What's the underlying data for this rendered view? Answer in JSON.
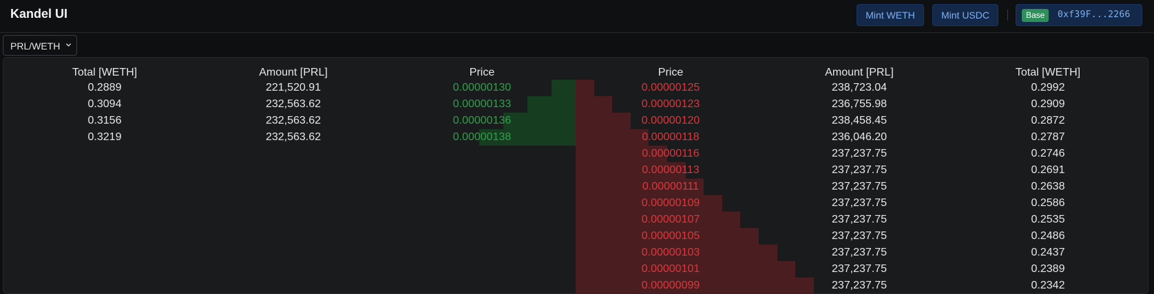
{
  "header": {
    "title": "Kandel UI",
    "mint_weth_label": "Mint WETH",
    "mint_usdc_label": "Mint USDC",
    "chain_badge": "Base",
    "wallet_address": "0xf39F...2266"
  },
  "market_select": {
    "value": "PRL/WETH"
  },
  "orderbook": {
    "bids": {
      "headers": [
        "Total [WETH]",
        "Amount [PRL]",
        "Price"
      ],
      "rows": [
        {
          "total": "0.2889",
          "amount": "221,520.91",
          "price": "0.00000130",
          "depth": 0.25
        },
        {
          "total": "0.3094",
          "amount": "232,563.62",
          "price": "0.00000133",
          "depth": 0.5
        },
        {
          "total": "0.3156",
          "amount": "232,563.62",
          "price": "0.00000136",
          "depth": 0.75
        },
        {
          "total": "0.3219",
          "amount": "232,563.62",
          "price": "0.00000138",
          "depth": 1.0
        }
      ]
    },
    "asks": {
      "headers": [
        "Price",
        "Amount [PRL]",
        "Total [WETH]"
      ],
      "rows": [
        {
          "price": "0.00000125",
          "amount": "238,723.04",
          "total": "0.2992",
          "depth": 0.07
        },
        {
          "price": "0.00000123",
          "amount": "236,755.98",
          "total": "0.2909",
          "depth": 0.14
        },
        {
          "price": "0.00000120",
          "amount": "238,458.45",
          "total": "0.2872",
          "depth": 0.21
        },
        {
          "price": "0.00000118",
          "amount": "236,046.20",
          "total": "0.2787",
          "depth": 0.28
        },
        {
          "price": "0.00000116",
          "amount": "237,237.75",
          "total": "0.2746",
          "depth": 0.35
        },
        {
          "price": "0.00000113",
          "amount": "237,237.75",
          "total": "0.2691",
          "depth": 0.42
        },
        {
          "price": "0.00000111",
          "amount": "237,237.75",
          "total": "0.2638",
          "depth": 0.49
        },
        {
          "price": "0.00000109",
          "amount": "237,237.75",
          "total": "0.2586",
          "depth": 0.56
        },
        {
          "price": "0.00000107",
          "amount": "237,237.75",
          "total": "0.2535",
          "depth": 0.63
        },
        {
          "price": "0.00000105",
          "amount": "237,237.75",
          "total": "0.2486",
          "depth": 0.7
        },
        {
          "price": "0.00000103",
          "amount": "237,237.75",
          "total": "0.2437",
          "depth": 0.77
        },
        {
          "price": "0.00000101",
          "amount": "237,237.75",
          "total": "0.2389",
          "depth": 0.84
        },
        {
          "price": "0.00000099",
          "amount": "237,237.75",
          "total": "0.2342",
          "depth": 0.91
        }
      ]
    }
  },
  "colors": {
    "bid": "#2fa14a",
    "ask": "#e0353a",
    "accent": "#14294a"
  }
}
